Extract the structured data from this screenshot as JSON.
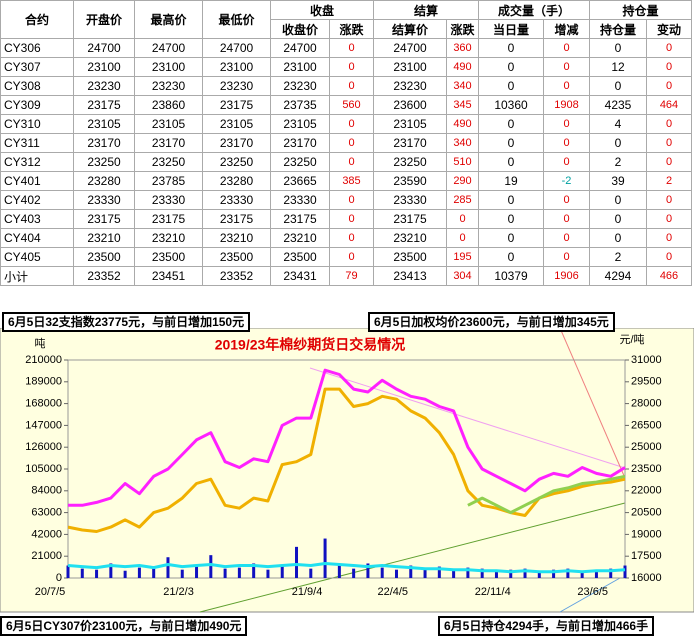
{
  "table": {
    "header_groups": [
      "合约",
      "开盘价",
      "最高价",
      "最低价",
      "收盘",
      "结算",
      "成交量（手）",
      "持仓量"
    ],
    "subheaders": [
      "收盘价",
      "涨跌",
      "结算价",
      "涨跌",
      "当日量",
      "增减",
      "持仓量",
      "变动"
    ],
    "rows": [
      [
        "CY306",
        24700,
        24700,
        24700,
        24700,
        0,
        24700,
        360,
        0,
        0,
        0,
        0
      ],
      [
        "CY307",
        23100,
        23100,
        23100,
        23100,
        0,
        23100,
        490,
        0,
        0,
        12,
        0
      ],
      [
        "CY308",
        23230,
        23230,
        23230,
        23230,
        0,
        23230,
        340,
        0,
        0,
        0,
        0
      ],
      [
        "CY309",
        23175,
        23860,
        23175,
        23735,
        560,
        23600,
        345,
        10360,
        1908,
        4235,
        464
      ],
      [
        "CY310",
        23105,
        23105,
        23105,
        23105,
        0,
        23105,
        490,
        0,
        0,
        4,
        0
      ],
      [
        "CY311",
        23170,
        23170,
        23170,
        23170,
        0,
        23170,
        340,
        0,
        0,
        0,
        0
      ],
      [
        "CY312",
        23250,
        23250,
        23250,
        23250,
        0,
        23250,
        510,
        0,
        0,
        2,
        0
      ],
      [
        "CY401",
        23280,
        23785,
        23280,
        23665,
        385,
        23590,
        290,
        19,
        -2,
        39,
        2
      ],
      [
        "CY402",
        23330,
        23330,
        23330,
        23330,
        0,
        23330,
        285,
        0,
        0,
        0,
        0
      ],
      [
        "CY403",
        23175,
        23175,
        23175,
        23175,
        0,
        23175,
        0,
        0,
        0,
        0,
        0
      ],
      [
        "CY404",
        23210,
        23210,
        23210,
        23210,
        0,
        23210,
        0,
        0,
        0,
        0,
        0
      ],
      [
        "CY405",
        23500,
        23500,
        23500,
        23500,
        0,
        23500,
        195,
        0,
        0,
        2,
        0
      ],
      [
        "小计",
        23352,
        23451,
        23352,
        23431,
        79,
        23413,
        304,
        10379,
        1906,
        4294,
        466
      ]
    ]
  },
  "annotations": [
    "6月5日32支指数23775元，与前日增加150元",
    "6月5日加权均价23600元，与前日增加345元",
    "6月5日CY307价23100元，与前日增加490元",
    "6月5日持仓4294手，与前日增加466手"
  ],
  "chart_data": {
    "type": "line",
    "title": "2019/23年棉纱期货日交易情况",
    "y_unit": "吨",
    "y2_unit": "元/吨",
    "categories": [
      "20/7/5",
      null,
      null,
      null,
      null,
      null,
      null,
      null,
      null,
      "21/2/3",
      null,
      null,
      null,
      null,
      null,
      null,
      null,
      null,
      "21/9/4",
      null,
      null,
      null,
      null,
      null,
      "22/4/5",
      null,
      null,
      null,
      null,
      null,
      null,
      "22/11/4",
      null,
      null,
      null,
      null,
      null,
      null,
      "23/6/5",
      null
    ],
    "ylim": [
      0,
      210000
    ],
    "yticks": [
      0,
      21000,
      42000,
      63000,
      84000,
      105000,
      126000,
      147000,
      168000,
      189000,
      210000
    ],
    "y2lim": [
      16000,
      31000
    ],
    "y2ticks": [
      16000,
      17500,
      19000,
      20500,
      22000,
      23500,
      25000,
      26500,
      28000,
      29500,
      31000
    ],
    "series": [
      {
        "type": "bar",
        "color": "#1010c0",
        "values": [
          12000,
          9000,
          8000,
          14000,
          7000,
          10000,
          9000,
          20000,
          8000,
          12000,
          22000,
          9000,
          10000,
          14000,
          8000,
          12000,
          30000,
          9000,
          38000,
          12000,
          9000,
          14000,
          10000,
          8000,
          12000,
          9000,
          11000,
          8000,
          10000,
          9000,
          7000,
          8000,
          9000,
          7000,
          8000,
          9000,
          7000,
          8000,
          9000,
          12000
        ]
      },
      {
        "type": "line",
        "axis": "y2",
        "color": "#ff20ff",
        "values": [
          21000,
          21000,
          21200,
          21500,
          22500,
          21800,
          23000,
          23500,
          24500,
          25500,
          26000,
          24000,
          23600,
          24200,
          24000,
          26500,
          27000,
          27000,
          30300,
          30000,
          29000,
          28800,
          29600,
          29000,
          28500,
          28300,
          27800,
          27500,
          25000,
          23500,
          23000,
          22500,
          22000,
          22800,
          23200,
          23000,
          23600,
          23200,
          23000,
          23600
        ]
      },
      {
        "type": "line",
        "axis": "y2",
        "color": "#f0b000",
        "values": [
          19500,
          19300,
          19200,
          19500,
          20000,
          19500,
          20500,
          20800,
          21500,
          22500,
          22800,
          21000,
          20800,
          21500,
          21300,
          23800,
          24000,
          24500,
          29000,
          29000,
          27800,
          28000,
          28500,
          28300,
          27500,
          27000,
          26000,
          24500,
          22000,
          21000,
          20800,
          20500,
          20300,
          21500,
          21800,
          22000,
          22300,
          22500,
          22600,
          22800
        ]
      },
      {
        "type": "line",
        "axis": "y2",
        "color": "#90d050",
        "values": [
          null,
          null,
          null,
          null,
          null,
          null,
          null,
          null,
          null,
          null,
          null,
          null,
          null,
          null,
          null,
          null,
          null,
          null,
          null,
          null,
          null,
          null,
          null,
          null,
          null,
          null,
          null,
          null,
          21000,
          21500,
          21000,
          20500,
          21000,
          21500,
          22000,
          22200,
          22500,
          22600,
          22800,
          23000
        ]
      },
      {
        "type": "line",
        "color": "#20e0f0",
        "values": [
          12000,
          11000,
          10000,
          12000,
          11000,
          12000,
          10000,
          13000,
          11000,
          12000,
          13000,
          11000,
          12000,
          12000,
          11000,
          12000,
          13000,
          12000,
          14000,
          13000,
          12000,
          11000,
          12000,
          11000,
          10000,
          9000,
          9000,
          8000,
          8000,
          7000,
          7000,
          6000,
          7000,
          6000,
          6000,
          7000,
          6000,
          7000,
          7000,
          8000
        ]
      }
    ]
  }
}
